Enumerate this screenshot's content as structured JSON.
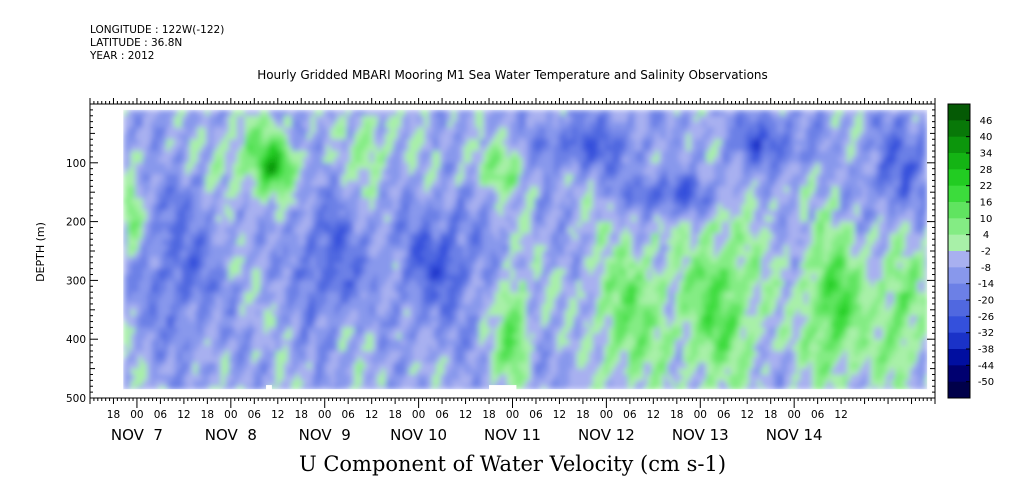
{
  "header": {
    "longitude": "LONGITUDE : 122W(-122)",
    "latitude": "LATITUDE : 36.8N",
    "year": "YEAR : 2012"
  },
  "chart_data": {
    "type": "heatmap",
    "title": "Hourly Gridded MBARI Mooring M1 Sea Water Temperature and Salinity Observations",
    "xlabel": "U Component of Water Velocity (cm s-1)",
    "ylabel": "DEPTH (m)",
    "variable": "U Component of Water Velocity",
    "units": "cm s-1",
    "x_range_hours": [
      -12,
      204
    ],
    "x_origin": "NOV 7 00",
    "y_axis": {
      "range": [
        500,
        0
      ],
      "ticks": [
        100,
        200,
        300,
        400,
        500
      ],
      "data_top": 10,
      "data_bottom": 485,
      "inverted": true
    },
    "x_hour_ticks": [
      "18",
      "00",
      "06",
      "12",
      "18",
      "00",
      "06",
      "12",
      "18",
      "00",
      "06",
      "12",
      "18",
      "00",
      "06",
      "12",
      "18",
      "00",
      "06",
      "12",
      "18",
      "00",
      "06",
      "12",
      "18",
      "00",
      "06",
      "12",
      "18",
      "00",
      "06",
      "12"
    ],
    "x_day_labels": [
      {
        "label": "NOV  7",
        "hour": 0
      },
      {
        "label": "NOV  8",
        "hour": 24
      },
      {
        "label": "NOV  9",
        "hour": 48
      },
      {
        "label": "NOV 10",
        "hour": 72
      },
      {
        "label": "NOV 11",
        "hour": 96
      },
      {
        "label": "NOV 12",
        "hour": 120
      },
      {
        "label": "NOV 13",
        "hour": 144
      },
      {
        "label": "NOV 14",
        "hour": 168
      }
    ],
    "data_start_hour": -3.5,
    "data_end_hour": 202,
    "colorbar": {
      "levels": [
        46,
        40,
        34,
        28,
        22,
        16,
        10,
        4,
        -2,
        -8,
        -14,
        -20,
        -26,
        -32,
        -38,
        -44,
        -50
      ],
      "min": -50,
      "max": 52,
      "colors": [
        "#00004a",
        "#000070",
        "#000ea0",
        "#1a32c8",
        "#3450dc",
        "#5068e0",
        "#6c80e6",
        "#8898ec",
        "#a8b0f0",
        "#a8f0a8",
        "#84ec84",
        "#60e460",
        "#3cdc3c",
        "#22cc22",
        "#14b414",
        "#0c960c",
        "#087808",
        "#055a05"
      ]
    },
    "field_features": [
      {
        "type": "band",
        "sign": "negative",
        "hour_start": -3.5,
        "hour_end": 1,
        "depth_top": 140,
        "depth_bottom": 260,
        "strength": 0.8
      },
      {
        "type": "band",
        "sign": "positive",
        "hour_start": 1,
        "hour_end": 22,
        "depth_top": 120,
        "depth_bottom": 420,
        "strength": 0.75
      },
      {
        "type": "band",
        "sign": "negative",
        "hour_start": 18,
        "hour_end": 40,
        "depth_top": 20,
        "depth_bottom": 160,
        "strength": 0.6
      },
      {
        "type": "band",
        "sign": "negative",
        "hour_start": 30,
        "hour_end": 40,
        "depth_top": 60,
        "depth_bottom": 150,
        "strength": 1.2
      },
      {
        "type": "band",
        "sign": "positive",
        "hour_start": 40,
        "hour_end": 58,
        "depth_top": 150,
        "depth_bottom": 380,
        "strength": 0.9
      },
      {
        "type": "band",
        "sign": "negative",
        "hour_start": 54,
        "hour_end": 66,
        "depth_top": 20,
        "depth_bottom": 140,
        "strength": 0.6
      },
      {
        "type": "band",
        "sign": "positive",
        "hour_start": 66,
        "hour_end": 88,
        "depth_top": 160,
        "depth_bottom": 380,
        "strength": 0.95
      },
      {
        "type": "band",
        "sign": "negative",
        "hour_start": 84,
        "hour_end": 102,
        "depth_top": 60,
        "depth_bottom": 150,
        "strength": 0.7
      },
      {
        "type": "band",
        "sign": "negative",
        "hour_start": 92,
        "hour_end": 100,
        "depth_top": 280,
        "depth_bottom": 485,
        "strength": 1.0
      },
      {
        "type": "band",
        "sign": "positive",
        "hour_start": 98,
        "hour_end": 130,
        "depth_top": 20,
        "depth_bottom": 120,
        "strength": 0.9
      },
      {
        "type": "band",
        "sign": "positive",
        "hour_start": 124,
        "hour_end": 150,
        "depth_top": 120,
        "depth_bottom": 190,
        "strength": 1.1
      },
      {
        "type": "band",
        "sign": "negative",
        "hour_start": 116,
        "hour_end": 136,
        "depth_top": 220,
        "depth_bottom": 485,
        "strength": 0.8
      },
      {
        "type": "band",
        "sign": "negative",
        "hour_start": 138,
        "hour_end": 160,
        "depth_top": 190,
        "depth_bottom": 485,
        "strength": 1.0
      },
      {
        "type": "band",
        "sign": "positive",
        "hour_start": 150,
        "hour_end": 172,
        "depth_top": 20,
        "depth_bottom": 110,
        "strength": 1.0
      },
      {
        "type": "band",
        "sign": "negative",
        "hour_start": 170,
        "hour_end": 186,
        "depth_top": 200,
        "depth_bottom": 485,
        "strength": 1.1
      },
      {
        "type": "band",
        "sign": "positive",
        "hour_start": 186,
        "hour_end": 202,
        "depth_top": 20,
        "depth_bottom": 200,
        "strength": 0.9
      },
      {
        "type": "band",
        "sign": "negative",
        "hour_start": 188,
        "hour_end": 202,
        "depth_top": 230,
        "depth_bottom": 485,
        "strength": 0.8
      }
    ],
    "missing_segments": [
      {
        "hour_start": 33,
        "hour_end": 34.5,
        "depth_top": 478,
        "depth_bottom": 485
      },
      {
        "hour_start": 90,
        "hour_end": 97,
        "depth_top": 478,
        "depth_bottom": 485
      }
    ]
  }
}
